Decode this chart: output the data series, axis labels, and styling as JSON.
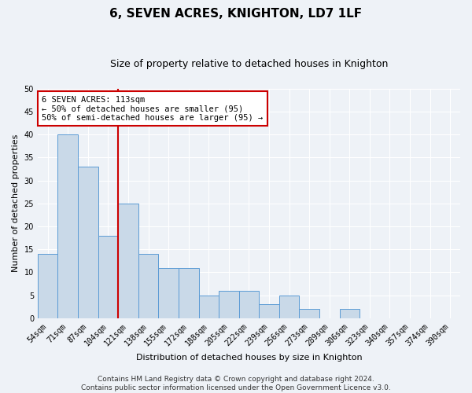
{
  "title": "6, SEVEN ACRES, KNIGHTON, LD7 1LF",
  "subtitle": "Size of property relative to detached houses in Knighton",
  "xlabel": "Distribution of detached houses by size in Knighton",
  "ylabel": "Number of detached properties",
  "categories": [
    "54sqm",
    "71sqm",
    "87sqm",
    "104sqm",
    "121sqm",
    "138sqm",
    "155sqm",
    "172sqm",
    "188sqm",
    "205sqm",
    "222sqm",
    "239sqm",
    "256sqm",
    "273sqm",
    "289sqm",
    "306sqm",
    "323sqm",
    "340sqm",
    "357sqm",
    "374sqm",
    "390sqm"
  ],
  "values": [
    14,
    40,
    33,
    18,
    25,
    14,
    11,
    11,
    5,
    6,
    6,
    3,
    5,
    2,
    0,
    2,
    0,
    0,
    0,
    0,
    0
  ],
  "bar_color": "#c9d9e8",
  "bar_edge_color": "#5b9bd5",
  "vline_x_index": 3.5,
  "vline_color": "#cc0000",
  "ylim": [
    0,
    50
  ],
  "yticks": [
    0,
    5,
    10,
    15,
    20,
    25,
    30,
    35,
    40,
    45,
    50
  ],
  "annotation_title": "6 SEVEN ACRES: 113sqm",
  "annotation_line1": "← 50% of detached houses are smaller (95)",
  "annotation_line2": "50% of semi-detached houses are larger (95) →",
  "annotation_box_facecolor": "#ffffff",
  "annotation_box_edgecolor": "#cc0000",
  "footer1": "Contains HM Land Registry data © Crown copyright and database right 2024.",
  "footer2": "Contains public sector information licensed under the Open Government Licence v3.0.",
  "background_color": "#eef2f7",
  "plot_background": "#eef2f7",
  "grid_color": "#ffffff",
  "title_fontsize": 11,
  "subtitle_fontsize": 9,
  "ylabel_fontsize": 8,
  "xlabel_fontsize": 8,
  "tick_fontsize": 7,
  "annotation_fontsize": 7.5,
  "footer_fontsize": 6.5
}
